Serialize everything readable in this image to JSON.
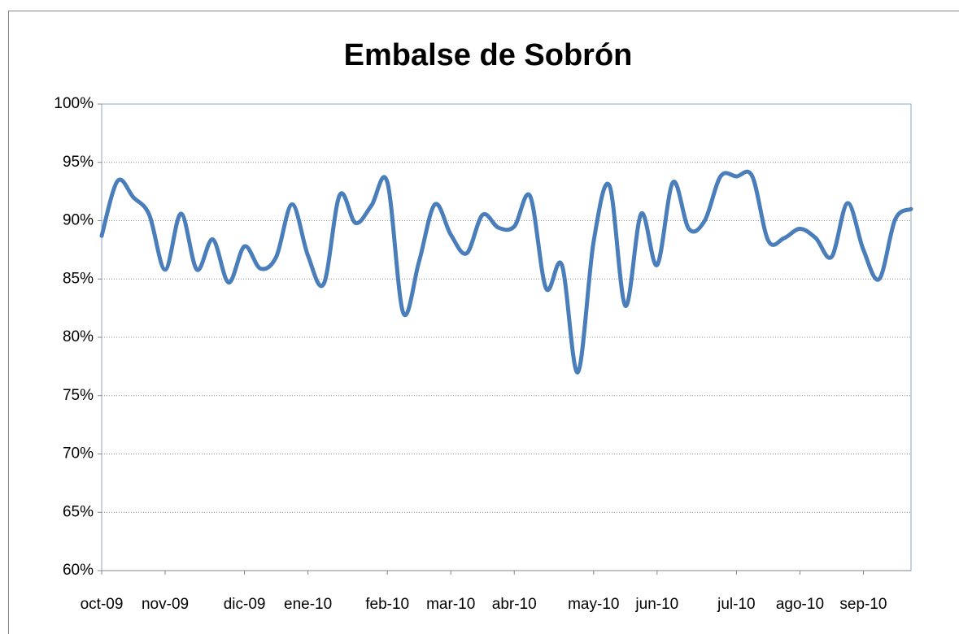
{
  "chart_data": {
    "type": "line",
    "title": "Embalse de Sobrón",
    "categories": [
      "oct-09",
      null,
      null,
      null,
      "nov-09",
      null,
      null,
      null,
      null,
      "dic-09",
      null,
      null,
      null,
      "ene-10",
      null,
      null,
      null,
      null,
      "feb-10",
      null,
      null,
      null,
      "mar-10",
      null,
      null,
      null,
      "abr-10",
      null,
      null,
      null,
      null,
      "may-10",
      null,
      null,
      null,
      "jun-10",
      null,
      null,
      null,
      null,
      "jul-10",
      null,
      null,
      null,
      "ago-10",
      null,
      null,
      null,
      "sep-10",
      null,
      null,
      null
    ],
    "series": [
      {
        "name": "Embalse de Sobrón",
        "color": "#4a7ebb",
        "values": [
          88.7,
          93.4,
          92,
          90.5,
          85.8,
          90.6,
          85.8,
          88.4,
          84.7,
          87.8,
          85.9,
          86.9,
          91.4,
          87,
          84.6,
          92.2,
          89.8,
          91.3,
          93.3,
          82.1,
          86.5,
          91.4,
          88.8,
          87.2,
          90.5,
          89.4,
          89.5,
          92.1,
          84.2,
          86.2,
          77,
          88.2,
          93,
          82.7,
          90.6,
          86.2,
          93.3,
          89.3,
          90,
          93.8,
          93.8,
          93.8,
          88.3,
          88.5,
          89.3,
          88.5,
          86.9,
          91.5,
          87.5,
          85,
          90.1,
          91
        ]
      }
    ],
    "ylim": [
      60,
      100
    ],
    "yticks": [
      {
        "value": 60,
        "label": "60%"
      },
      {
        "value": 65,
        "label": "65%"
      },
      {
        "value": 70,
        "label": "70%"
      },
      {
        "value": 75,
        "label": "75%"
      },
      {
        "value": 80,
        "label": "80%"
      },
      {
        "value": 85,
        "label": "85%"
      },
      {
        "value": 90,
        "label": "90%"
      },
      {
        "value": 95,
        "label": "95%"
      },
      {
        "value": 100,
        "label": "100%"
      }
    ],
    "grid": true
  }
}
